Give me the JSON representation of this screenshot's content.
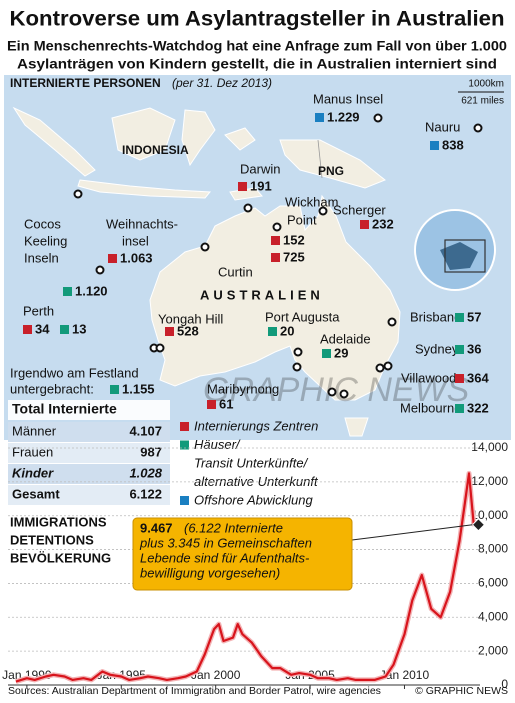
{
  "header": {
    "title": "Kontroverse um Asylantragsteller in Australien",
    "subtitle": [
      "Ein Menschenrechts-Watchdog hat eine Anfrage zum Fall von über 1.000",
      "Asylanträgen von Kindern gestellt, die in Australien interniert sind"
    ]
  },
  "map": {
    "section_title": "Internierte Personen",
    "section_date": "(per 31. Dez 2013)",
    "scale": [
      "1000km",
      "621 miles"
    ],
    "regions": [
      "INDONESIA",
      "PNG",
      "AUSTRALIEN"
    ],
    "watermark": "GRAPHIC NEWS",
    "locations": [
      {
        "name": [
          "Manus Insel"
        ],
        "entries": [
          {
            "value": "1.229",
            "color": "#1a7fc1"
          }
        ]
      },
      {
        "name": [
          "Nauru"
        ],
        "entries": [
          {
            "value": "838",
            "color": "#1a7fc1"
          }
        ]
      },
      {
        "name": [
          "Darwin"
        ],
        "entries": [
          {
            "value": "191",
            "color": "#c8202a"
          }
        ]
      },
      {
        "name": [
          "Wickham",
          "Point"
        ],
        "entries": [
          {
            "value": "152",
            "color": "#c8202a"
          }
        ]
      },
      {
        "name": [
          "Curtin"
        ],
        "entries": [
          {
            "value": "725",
            "color": "#c8202a"
          }
        ]
      },
      {
        "name": [
          "Scherger"
        ],
        "entries": [
          {
            "value": "232",
            "color": "#c8202a"
          }
        ]
      },
      {
        "name": [
          "Cocos",
          "Keeling",
          "Inseln"
        ],
        "entries": [
          {
            "value": "1.120",
            "color": "#129a7a"
          }
        ]
      },
      {
        "name": [
          "Weihnachts-",
          "insel"
        ],
        "entries": [
          {
            "value": "1.063",
            "color": "#c8202a"
          }
        ]
      },
      {
        "name": [
          "Perth"
        ],
        "entries": [
          {
            "value": "34",
            "color": "#c8202a"
          },
          {
            "value": "13",
            "color": "#129a7a"
          }
        ]
      },
      {
        "name": [
          "Yongah Hill"
        ],
        "entries": [
          {
            "value": "528",
            "color": "#c8202a"
          }
        ]
      },
      {
        "name": [
          "Port Augusta"
        ],
        "entries": [
          {
            "value": "20",
            "color": "#129a7a"
          }
        ]
      },
      {
        "name": [
          "Adelaide"
        ],
        "entries": [
          {
            "value": "29",
            "color": "#129a7a"
          }
        ]
      },
      {
        "name": [
          "Brisbane"
        ],
        "entries": [
          {
            "value": "57",
            "color": "#129a7a"
          }
        ]
      },
      {
        "name": [
          "Sydney"
        ],
        "entries": [
          {
            "value": "36",
            "color": "#129a7a"
          }
        ]
      },
      {
        "name": [
          "Villawood"
        ],
        "entries": [
          {
            "value": "364",
            "color": "#c8202a"
          }
        ]
      },
      {
        "name": [
          "Melbourne"
        ],
        "entries": [
          {
            "value": "322",
            "color": "#129a7a"
          }
        ]
      },
      {
        "name": [
          "Maribyrnong"
        ],
        "entries": [
          {
            "value": "61",
            "color": "#c8202a"
          }
        ]
      },
      {
        "name": [
          "Irgendwo am Festland",
          "untergebracht:"
        ],
        "entries": [
          {
            "value": "1.155",
            "color": "#129a7a"
          }
        ]
      }
    ],
    "legend": [
      {
        "label": [
          "Internierungs Zentren"
        ],
        "color": "#c8202a"
      },
      {
        "label": [
          "Häuser/",
          "Transit Unterkünfte/",
          "alternative Unterkunft"
        ],
        "color": "#129a7a"
      },
      {
        "label": [
          "Offshore Abwicklung"
        ],
        "color": "#1a7fc1"
      }
    ]
  },
  "table": {
    "title": "Total Internierte",
    "rows": [
      [
        "Männer",
        "4.107"
      ],
      [
        "Frauen",
        "987"
      ],
      [
        "Kinder",
        "1.028"
      ],
      [
        "Gesamt",
        "6.122"
      ]
    ]
  },
  "chart_data": {
    "type": "line",
    "title": [
      "IMMIGRATIONS",
      "DETENTIONS",
      "BEVÖLKERUNG"
    ],
    "color": "#d8141c",
    "x": [
      "1989-06",
      "1990-01",
      "1990-06",
      "1991-01",
      "1991-06",
      "1992-01",
      "1992-06",
      "1993-01",
      "1993-06",
      "1994-01",
      "1994-06",
      "1995-01",
      "1995-06",
      "1996-01",
      "1996-06",
      "1997-01",
      "1997-06",
      "1998-01",
      "1998-06",
      "1999-01",
      "1999-06",
      "1999-12",
      "2000-03",
      "2000-06",
      "2000-12",
      "2001-03",
      "2001-06",
      "2001-12",
      "2002-06",
      "2003-01",
      "2003-06",
      "2004-01",
      "2004-06",
      "2005-01",
      "2005-06",
      "2006-01",
      "2006-06",
      "2007-01",
      "2007-06",
      "2008-01",
      "2008-06",
      "2009-01",
      "2009-06",
      "2010-01",
      "2010-06",
      "2010-12",
      "2011-06",
      "2011-12",
      "2012-06",
      "2012-12",
      "2013-03",
      "2013-06",
      "2013-09",
      "2013-12"
    ],
    "values": [
      200,
      400,
      300,
      500,
      600,
      500,
      300,
      400,
      300,
      800,
      600,
      500,
      300,
      400,
      500,
      400,
      300,
      400,
      500,
      800,
      1800,
      3300,
      3600,
      2600,
      2800,
      3600,
      3000,
      2500,
      1700,
      1000,
      1000,
      600,
      700,
      600,
      400,
      400,
      300,
      400,
      300,
      300,
      300,
      500,
      1200,
      3000,
      5000,
      6500,
      4500,
      4000,
      5500,
      8500,
      10500,
      12500,
      9500,
      9467
    ],
    "xlim": [
      "1989-01",
      "2014-01"
    ],
    "xticks": [
      {
        "value": "1990-01",
        "label": "Jan 1990"
      },
      {
        "value": "1995-01",
        "label": "Jan 1995"
      },
      {
        "value": "2000-01",
        "label": "Jan 2000"
      },
      {
        "value": "2005-01",
        "label": "Jan 2005"
      },
      {
        "value": "2010-01",
        "label": "Jan 2010"
      }
    ],
    "ylim": [
      0,
      14000
    ],
    "yticks": [
      0,
      {
        "value": 2000,
        "label": "2,000"
      },
      {
        "value": 4000,
        "label": "4,000"
      },
      {
        "value": 6000,
        "label": "6,000"
      },
      {
        "value": 8000,
        "label": "8,000"
      },
      {
        "value": 10000,
        "label": "10,000"
      },
      {
        "value": 12000,
        "label": "12,000"
      },
      {
        "value": 14000,
        "label": "14,000"
      }
    ],
    "grid": true,
    "annotation": {
      "value": "9.467",
      "text": [
        "(6.122 Internierte",
        "plus 3.345 in Gemeinschaften",
        "Lebende sind für Aufenthalts-",
        "bewilligung vorgesehen)"
      ]
    }
  },
  "footer": {
    "sources": "Sources: Australian Department of Immigration and Border Patrol, wire agencies",
    "credit": "© GRAPHIC NEWS"
  }
}
